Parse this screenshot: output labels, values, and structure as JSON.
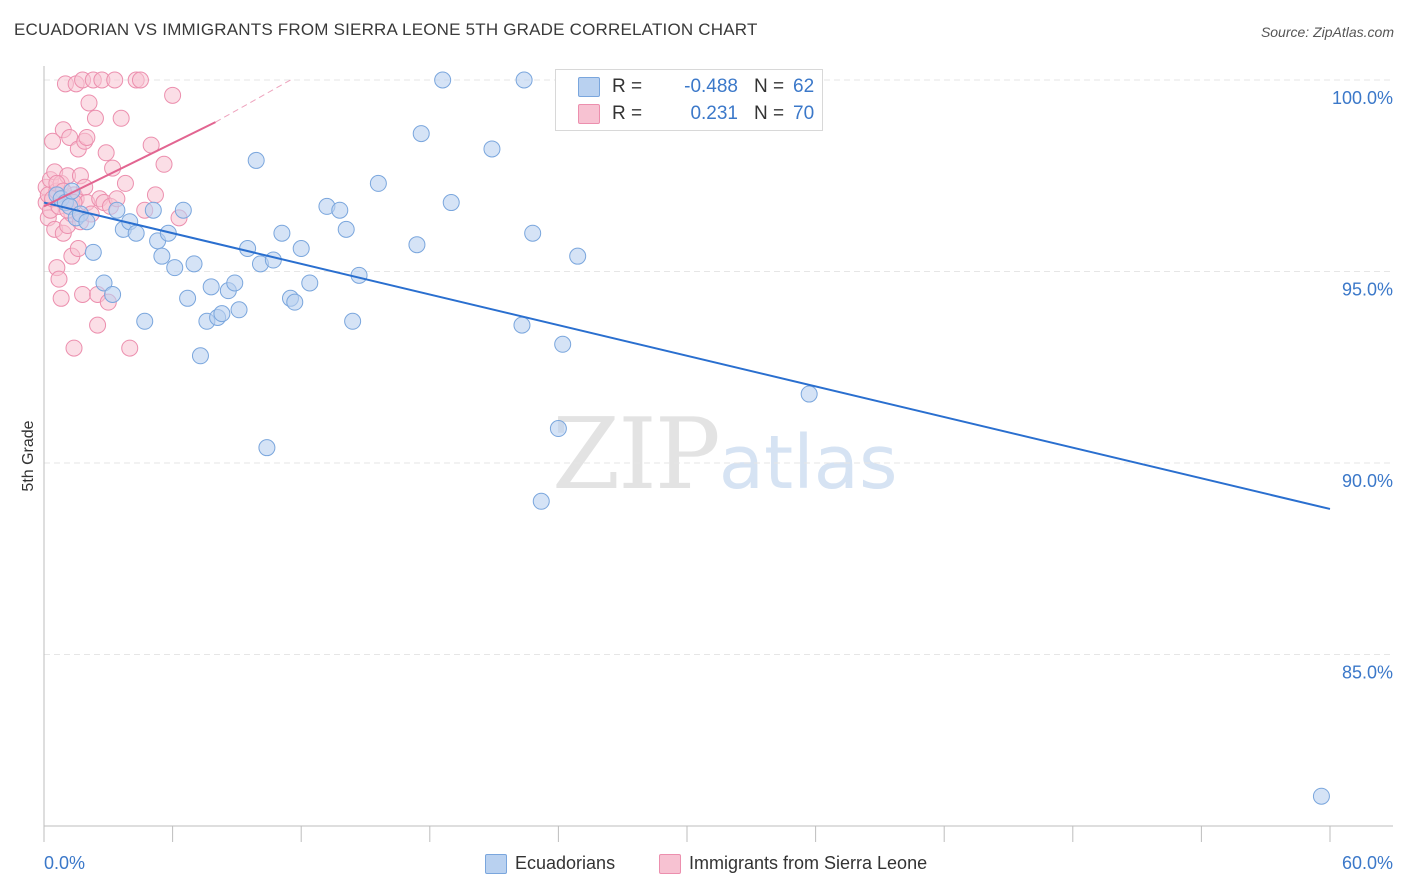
{
  "title": "ECUADORIAN VS IMMIGRANTS FROM SIERRA LEONE 5TH GRADE CORRELATION CHART",
  "source": "Source: ZipAtlas.com",
  "watermark": {
    "zip": "ZIP",
    "atlas": "atlas"
  },
  "legend": {
    "rows": [
      {
        "r_label": "R =",
        "r_value": "-0.488",
        "n_label": "N =",
        "n_value": "62"
      },
      {
        "r_label": "R =",
        "r_value": "0.231",
        "n_label": "N =",
        "n_value": "70"
      }
    ]
  },
  "bottom_legend": [
    "Ecuadorians",
    "Immigrants from Sierra Leone"
  ],
  "colors": {
    "blue_fill": "#b9d1f0",
    "blue_stroke": "#7aa6dd",
    "blue_line": "#2a6fcf",
    "pink_fill": "#f7c2d2",
    "pink_stroke": "#ec8fae",
    "pink_line": "#e26591",
    "axis_text": "#3b78c9",
    "grid": "#e6e6e6"
  },
  "chart_data": {
    "type": "scatter",
    "title": "ECUADORIAN VS IMMIGRANTS FROM SIERRA LEONE 5TH GRADE CORRELATION CHART",
    "xlabel": "",
    "ylabel": "5th Grade",
    "xlim": [
      0,
      60
    ],
    "ylim": [
      80.5,
      100.5
    ],
    "x_tick_labels": [
      "0.0%",
      "60.0%"
    ],
    "y_ticks": [
      100,
      95,
      90,
      85
    ],
    "y_tick_labels": [
      "100.0%",
      "95.0%",
      "90.0%",
      "85.0%"
    ],
    "grid": true,
    "legend_position": "top-center",
    "series": [
      {
        "name": "Ecuadorians",
        "r": -0.488,
        "n": 62,
        "trend": {
          "x": [
            0,
            60
          ],
          "y": [
            96.8,
            88.8
          ]
        },
        "points": [
          [
            0.6,
            97.0
          ],
          [
            0.8,
            96.9
          ],
          [
            1.0,
            96.8
          ],
          [
            1.2,
            96.7
          ],
          [
            1.5,
            96.4
          ],
          [
            1.7,
            96.5
          ],
          [
            2.0,
            96.3
          ],
          [
            2.3,
            95.5
          ],
          [
            2.8,
            94.7
          ],
          [
            3.2,
            94.4
          ],
          [
            3.4,
            96.6
          ],
          [
            3.7,
            96.1
          ],
          [
            4.0,
            96.3
          ],
          [
            4.3,
            96.0
          ],
          [
            4.7,
            93.7
          ],
          [
            5.1,
            96.6
          ],
          [
            5.3,
            95.8
          ],
          [
            5.5,
            95.4
          ],
          [
            5.8,
            96.0
          ],
          [
            6.1,
            95.1
          ],
          [
            6.5,
            96.6
          ],
          [
            6.7,
            94.3
          ],
          [
            7.0,
            95.2
          ],
          [
            7.3,
            92.8
          ],
          [
            7.6,
            93.7
          ],
          [
            7.8,
            94.6
          ],
          [
            8.1,
            93.8
          ],
          [
            8.3,
            93.9
          ],
          [
            8.6,
            94.5
          ],
          [
            8.9,
            94.7
          ],
          [
            9.1,
            94.0
          ],
          [
            9.5,
            95.6
          ],
          [
            9.9,
            97.9
          ],
          [
            10.1,
            95.2
          ],
          [
            10.4,
            90.4
          ],
          [
            10.7,
            95.3
          ],
          [
            11.1,
            96.0
          ],
          [
            11.5,
            94.3
          ],
          [
            11.7,
            94.2
          ],
          [
            12.0,
            95.6
          ],
          [
            12.4,
            94.7
          ],
          [
            13.2,
            96.7
          ],
          [
            13.8,
            96.6
          ],
          [
            14.1,
            96.1
          ],
          [
            14.4,
            93.7
          ],
          [
            14.7,
            94.9
          ],
          [
            15.6,
            97.3
          ],
          [
            17.4,
            95.7
          ],
          [
            17.6,
            98.6
          ],
          [
            18.6,
            100.0
          ],
          [
            19.0,
            96.8
          ],
          [
            20.9,
            98.2
          ],
          [
            22.3,
            93.6
          ],
          [
            22.4,
            100.0
          ],
          [
            22.8,
            96.0
          ],
          [
            23.2,
            89.0
          ],
          [
            24.0,
            90.9
          ],
          [
            24.2,
            93.1
          ],
          [
            24.9,
            95.4
          ],
          [
            35.7,
            91.8
          ],
          [
            59.6,
            81.3
          ],
          [
            1.3,
            97.1
          ]
        ]
      },
      {
        "name": "Immigrants from Sierra Leone",
        "r": 0.231,
        "n": 70,
        "trend": {
          "x": [
            0,
            8
          ],
          "y": [
            96.7,
            98.9
          ]
        },
        "trend_dashed": {
          "x": [
            8,
            11.5
          ],
          "y": [
            98.9,
            100.0
          ]
        },
        "points": [
          [
            0.1,
            96.8
          ],
          [
            0.1,
            97.2
          ],
          [
            0.2,
            96.4
          ],
          [
            0.2,
            97.0
          ],
          [
            0.3,
            96.6
          ],
          [
            0.3,
            97.4
          ],
          [
            0.4,
            96.9
          ],
          [
            0.4,
            98.4
          ],
          [
            0.5,
            97.6
          ],
          [
            0.5,
            96.1
          ],
          [
            0.6,
            95.1
          ],
          [
            0.6,
            97.1
          ],
          [
            0.7,
            96.7
          ],
          [
            0.7,
            94.8
          ],
          [
            0.8,
            94.3
          ],
          [
            0.8,
            97.3
          ],
          [
            0.9,
            96.0
          ],
          [
            0.9,
            98.7
          ],
          [
            1.0,
            96.8
          ],
          [
            1.0,
            99.9
          ],
          [
            1.1,
            97.5
          ],
          [
            1.1,
            96.2
          ],
          [
            1.2,
            96.9
          ],
          [
            1.2,
            98.5
          ],
          [
            1.3,
            95.4
          ],
          [
            1.3,
            96.5
          ],
          [
            1.4,
            93.0
          ],
          [
            1.4,
            97.0
          ],
          [
            1.5,
            96.9
          ],
          [
            1.5,
            99.9
          ],
          [
            1.6,
            98.2
          ],
          [
            1.6,
            95.6
          ],
          [
            1.7,
            97.5
          ],
          [
            1.7,
            96.3
          ],
          [
            1.8,
            100.0
          ],
          [
            1.8,
            94.4
          ],
          [
            1.9,
            98.4
          ],
          [
            1.9,
            97.2
          ],
          [
            2.0,
            96.8
          ],
          [
            2.0,
            98.5
          ],
          [
            2.1,
            99.4
          ],
          [
            2.2,
            96.5
          ],
          [
            2.3,
            100.0
          ],
          [
            2.4,
            99.0
          ],
          [
            2.5,
            94.4
          ],
          [
            2.5,
            93.6
          ],
          [
            2.6,
            96.9
          ],
          [
            2.7,
            100.0
          ],
          [
            2.8,
            96.8
          ],
          [
            2.9,
            98.1
          ],
          [
            3.0,
            94.2
          ],
          [
            3.1,
            96.7
          ],
          [
            3.2,
            97.7
          ],
          [
            3.3,
            100.0
          ],
          [
            3.4,
            96.9
          ],
          [
            3.6,
            99.0
          ],
          [
            3.8,
            97.3
          ],
          [
            4.0,
            93.0
          ],
          [
            4.3,
            100.0
          ],
          [
            4.5,
            100.0
          ],
          [
            4.7,
            96.6
          ],
          [
            5.0,
            98.3
          ],
          [
            5.2,
            97.0
          ],
          [
            5.6,
            97.8
          ],
          [
            6.0,
            99.6
          ],
          [
            6.3,
            96.4
          ],
          [
            0.6,
            97.3
          ],
          [
            0.9,
            97.1
          ],
          [
            1.1,
            96.6
          ],
          [
            1.4,
            96.8
          ]
        ]
      }
    ]
  }
}
